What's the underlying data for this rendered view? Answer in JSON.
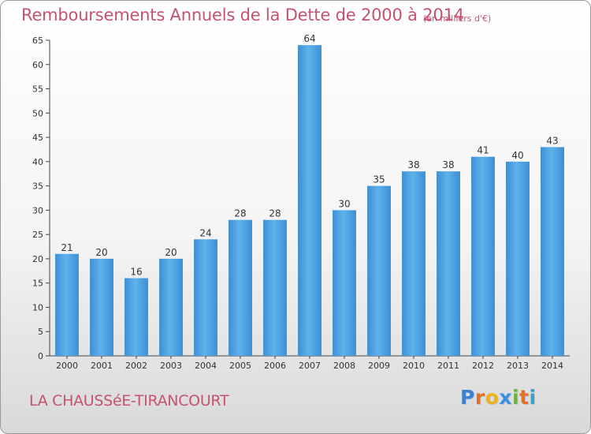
{
  "header": {
    "title": "Remboursements Annuels de la Dette de 2000 à 2014",
    "subtitle": "(en milliers d'€)"
  },
  "footer": {
    "place": "LA CHAUSSéE-TIRANCOURT",
    "logo": [
      "P",
      "r",
      "o",
      "x",
      "i",
      "t",
      "i"
    ],
    "logo_colors": [
      "#3a7fd0",
      "#e0702a",
      "#f0b21c",
      "#3a8fe0",
      "#6cb43c",
      "#e0702a",
      "#3a9fd0"
    ]
  },
  "chart_data": {
    "type": "bar",
    "title": "Remboursements Annuels de la Dette de 2000 à 2014",
    "subtitle": "(en milliers d'€)",
    "categories": [
      "2000",
      "2001",
      "2002",
      "2003",
      "2004",
      "2005",
      "2006",
      "2007",
      "2008",
      "2009",
      "2010",
      "2011",
      "2012",
      "2013",
      "2014"
    ],
    "values": [
      21,
      20,
      16,
      20,
      24,
      28,
      28,
      64,
      30,
      35,
      38,
      38,
      41,
      40,
      43
    ],
    "ylim": [
      0,
      65
    ],
    "yticks": [
      0,
      5,
      10,
      15,
      20,
      25,
      30,
      35,
      40,
      45,
      50,
      55,
      60,
      65
    ],
    "grid": false,
    "bar_color": "#3d8fd6",
    "bar_color_light": "#5eb3ea"
  }
}
